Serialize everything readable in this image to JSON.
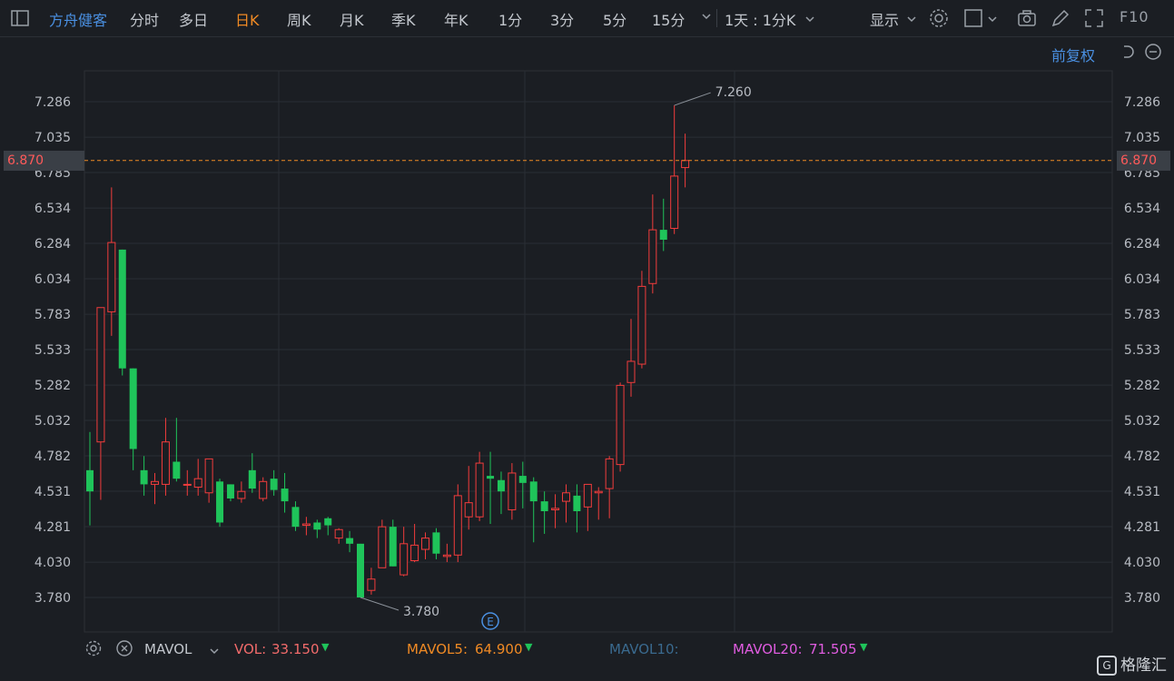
{
  "toolbar": {
    "stock_name": "方舟健客",
    "periods": [
      "分时",
      "多日",
      "日K",
      "周K",
      "月K",
      "季K",
      "年K",
      "1分",
      "3分",
      "5分",
      "15分"
    ],
    "active_period": "日K",
    "range_select": "1天 : 1分K",
    "display_label": "显示",
    "f10_label": "F10"
  },
  "adjust_label": "前复权",
  "current_price": "6.870",
  "annotations": {
    "high_label": "7.260",
    "low_label": "3.780",
    "event_marker": "E"
  },
  "indicator_bar": {
    "name": "MAVOL",
    "vol_label": "VOL:",
    "vol_value": "33.150",
    "mavol5_label": "MAVOL5:",
    "mavol5_value": "64.900",
    "mavol10_label": "MAVOL10:",
    "mavol20_label": "MAVOL20:",
    "mavol20_value": "71.505"
  },
  "watermark": "格隆汇",
  "colors": {
    "up": "#f23c3c",
    "down": "#1fc45a",
    "accent": "#f08a24",
    "link": "#4a90e2",
    "mavol5": "#f08a24",
    "mavol10": "#3a6a8f",
    "mavol20": "#e05ce0"
  },
  "chart_data": {
    "type": "candlestick",
    "y_ticks": [
      "7.286",
      "7.035",
      "6.785",
      "6.534",
      "6.284",
      "6.034",
      "5.783",
      "5.533",
      "5.282",
      "5.032",
      "4.782",
      "4.531",
      "4.281",
      "4.030",
      "3.780"
    ],
    "ylim": [
      3.58,
      7.45
    ],
    "last_price": 6.87,
    "high": 7.26,
    "low": 3.78,
    "grid": true,
    "candles": [
      {
        "o": 4.68,
        "h": 4.95,
        "l": 4.29,
        "c": 4.53
      },
      {
        "o": 4.88,
        "h": 5.83,
        "l": 4.47,
        "c": 5.83
      },
      {
        "o": 5.8,
        "h": 6.68,
        "l": 5.63,
        "c": 6.29
      },
      {
        "o": 6.24,
        "h": 6.24,
        "l": 5.35,
        "c": 5.4
      },
      {
        "o": 5.4,
        "h": 5.4,
        "l": 4.68,
        "c": 4.83
      },
      {
        "o": 4.68,
        "h": 4.78,
        "l": 4.5,
        "c": 4.58
      },
      {
        "o": 4.58,
        "h": 4.66,
        "l": 4.44,
        "c": 4.6
      },
      {
        "o": 4.58,
        "h": 5.05,
        "l": 4.5,
        "c": 4.88
      },
      {
        "o": 4.74,
        "h": 5.05,
        "l": 4.6,
        "c": 4.62
      },
      {
        "o": 4.58,
        "h": 4.68,
        "l": 4.5,
        "c": 4.58
      },
      {
        "o": 4.56,
        "h": 4.76,
        "l": 4.5,
        "c": 4.62
      },
      {
        "o": 4.52,
        "h": 4.76,
        "l": 4.45,
        "c": 4.76
      },
      {
        "o": 4.6,
        "h": 4.62,
        "l": 4.28,
        "c": 4.31
      },
      {
        "o": 4.58,
        "h": 4.58,
        "l": 4.46,
        "c": 4.48
      },
      {
        "o": 4.48,
        "h": 4.6,
        "l": 4.45,
        "c": 4.53
      },
      {
        "o": 4.68,
        "h": 4.8,
        "l": 4.52,
        "c": 4.55
      },
      {
        "o": 4.48,
        "h": 4.63,
        "l": 4.46,
        "c": 4.6
      },
      {
        "o": 4.62,
        "h": 4.68,
        "l": 4.5,
        "c": 4.54
      },
      {
        "o": 4.55,
        "h": 4.66,
        "l": 4.38,
        "c": 4.46
      },
      {
        "o": 4.42,
        "h": 4.46,
        "l": 4.25,
        "c": 4.28
      },
      {
        "o": 4.29,
        "h": 4.35,
        "l": 4.22,
        "c": 4.3
      },
      {
        "o": 4.31,
        "h": 4.33,
        "l": 4.2,
        "c": 4.26
      },
      {
        "o": 4.34,
        "h": 4.35,
        "l": 4.22,
        "c": 4.29
      },
      {
        "o": 4.2,
        "h": 4.27,
        "l": 4.16,
        "c": 4.26
      },
      {
        "o": 4.2,
        "h": 4.25,
        "l": 4.1,
        "c": 4.16
      },
      {
        "o": 4.16,
        "h": 4.16,
        "l": 3.78,
        "c": 3.78
      },
      {
        "o": 3.83,
        "h": 3.99,
        "l": 3.8,
        "c": 3.91
      },
      {
        "o": 3.99,
        "h": 4.33,
        "l": 3.99,
        "c": 4.28
      },
      {
        "o": 4.28,
        "h": 4.33,
        "l": 4.0,
        "c": 4.0
      },
      {
        "o": 3.94,
        "h": 4.28,
        "l": 3.93,
        "c": 4.16
      },
      {
        "o": 4.04,
        "h": 4.3,
        "l": 4.03,
        "c": 4.15
      },
      {
        "o": 4.12,
        "h": 4.24,
        "l": 4.05,
        "c": 4.2
      },
      {
        "o": 4.24,
        "h": 4.27,
        "l": 4.05,
        "c": 4.09
      },
      {
        "o": 4.07,
        "h": 4.16,
        "l": 4.03,
        "c": 4.08
      },
      {
        "o": 4.08,
        "h": 4.58,
        "l": 4.03,
        "c": 4.5
      },
      {
        "o": 4.35,
        "h": 4.71,
        "l": 4.26,
        "c": 4.45
      },
      {
        "o": 4.35,
        "h": 4.81,
        "l": 4.32,
        "c": 4.73
      },
      {
        "o": 4.64,
        "h": 4.81,
        "l": 4.3,
        "c": 4.62
      },
      {
        "o": 4.61,
        "h": 4.67,
        "l": 4.37,
        "c": 4.53
      },
      {
        "o": 4.4,
        "h": 4.73,
        "l": 4.33,
        "c": 4.66
      },
      {
        "o": 4.64,
        "h": 4.74,
        "l": 4.41,
        "c": 4.59
      },
      {
        "o": 4.6,
        "h": 4.63,
        "l": 4.17,
        "c": 4.46
      },
      {
        "o": 4.46,
        "h": 4.53,
        "l": 4.23,
        "c": 4.39
      },
      {
        "o": 4.4,
        "h": 4.51,
        "l": 4.27,
        "c": 4.41
      },
      {
        "o": 4.46,
        "h": 4.58,
        "l": 4.31,
        "c": 4.52
      },
      {
        "o": 4.5,
        "h": 4.58,
        "l": 4.24,
        "c": 4.39
      },
      {
        "o": 4.42,
        "h": 4.58,
        "l": 4.25,
        "c": 4.58
      },
      {
        "o": 4.52,
        "h": 4.56,
        "l": 4.33,
        "c": 4.53
      },
      {
        "o": 4.55,
        "h": 4.78,
        "l": 4.34,
        "c": 4.76
      },
      {
        "o": 4.72,
        "h": 5.3,
        "l": 4.67,
        "c": 5.28
      },
      {
        "o": 5.3,
        "h": 5.75,
        "l": 5.2,
        "c": 5.45
      },
      {
        "o": 5.43,
        "h": 6.09,
        "l": 5.4,
        "c": 5.98
      },
      {
        "o": 6.0,
        "h": 6.63,
        "l": 5.93,
        "c": 6.38
      },
      {
        "o": 6.38,
        "h": 6.6,
        "l": 6.23,
        "c": 6.31
      },
      {
        "o": 6.39,
        "h": 7.26,
        "l": 6.35,
        "c": 6.76
      },
      {
        "o": 6.82,
        "h": 7.06,
        "l": 6.68,
        "c": 6.87
      }
    ]
  }
}
